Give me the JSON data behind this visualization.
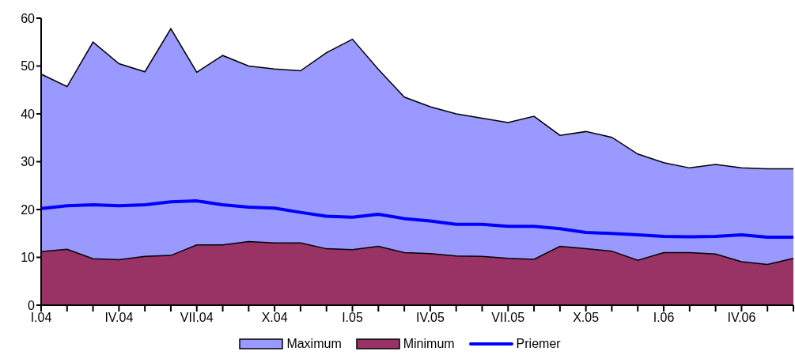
{
  "chart_data": {
    "type": "area",
    "categories": [
      "I.04",
      null,
      null,
      "IV.04",
      null,
      null,
      "VII.04",
      null,
      null,
      "X.04",
      null,
      null,
      "I.05",
      null,
      null,
      "IV.05",
      null,
      null,
      "VII.05",
      null,
      null,
      "X.05",
      null,
      null,
      "I.06",
      null,
      null,
      "IV.06",
      null,
      null
    ],
    "series": [
      {
        "name": "Maximum",
        "color": "#9999ff",
        "values": [
          48.3,
          45.7,
          55,
          50.5,
          48.8,
          57.8,
          48.7,
          52.2,
          50,
          49.4,
          49,
          52.8,
          55.6,
          49.3,
          43.5,
          41.5,
          40,
          39.1,
          38.2,
          39.5,
          35.5,
          36.3,
          35.1,
          31.6,
          29.8,
          28.7,
          29.4,
          28.7,
          28.5,
          28.5
        ]
      },
      {
        "name": "Minimum",
        "color": "#993366",
        "values": [
          11.2,
          11.7,
          9.7,
          9.5,
          10.2,
          10.4,
          12.6,
          12.6,
          13.3,
          13,
          13,
          11.8,
          11.6,
          12.3,
          11,
          10.8,
          10.3,
          10.2,
          9.8,
          9.6,
          12.3,
          11.8,
          11.3,
          9.4,
          11,
          11,
          10.7,
          9.1,
          8.5,
          9.8
        ]
      },
      {
        "name": "Priemer",
        "type": "line",
        "color": "#0000ff",
        "values": [
          20.2,
          20.8,
          21,
          20.8,
          21,
          21.6,
          21.8,
          21,
          20.5,
          20.3,
          19.4,
          18.6,
          18.4,
          19,
          18.1,
          17.6,
          16.9,
          16.9,
          16.5,
          16.5,
          16,
          15.2,
          15,
          14.7,
          14.4,
          14.3,
          14.4,
          14.7,
          14.2,
          14.2
        ]
      }
    ],
    "ylim": [
      0,
      60
    ],
    "yticks": [
      0,
      10,
      20,
      30,
      40,
      50,
      60
    ],
    "grid": false,
    "legend": "bottom",
    "marker": "none"
  }
}
